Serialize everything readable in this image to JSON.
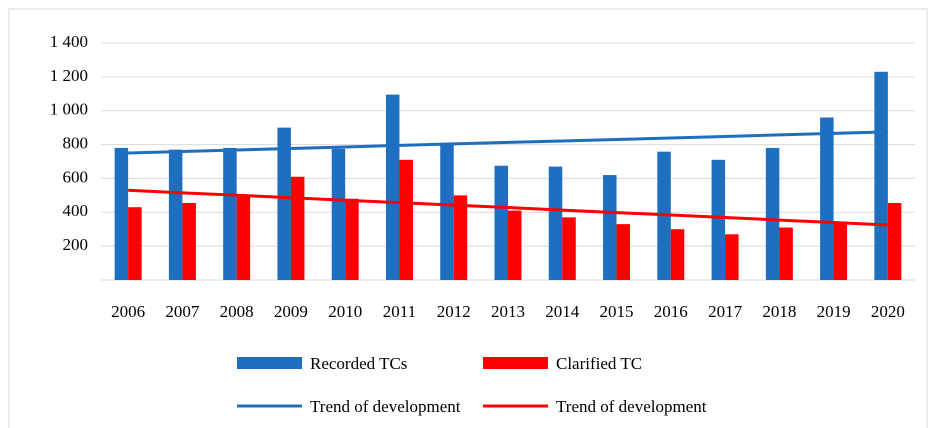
{
  "chart_data": {
    "type": "bar",
    "categories": [
      "2006",
      "2007",
      "2008",
      "2009",
      "2010",
      "2011",
      "2012",
      "2013",
      "2014",
      "2015",
      "2016",
      "2017",
      "2018",
      "2019",
      "2020"
    ],
    "series": [
      {
        "name": "Recorded TCs",
        "type": "bar",
        "color": "#1f6fc0",
        "values": [
          780,
          770,
          780,
          900,
          775,
          1095,
          810,
          675,
          670,
          620,
          758,
          710,
          780,
          960,
          1230
        ]
      },
      {
        "name": "Clarified TC",
        "type": "bar",
        "color": "#ff0000",
        "values": [
          430,
          455,
          500,
          610,
          480,
          710,
          500,
          410,
          370,
          330,
          300,
          270,
          310,
          340,
          455
        ]
      },
      {
        "name": "Trend of development",
        "type": "line",
        "color": "#1f6fc0",
        "values": [
          750,
          759,
          768,
          777,
          786,
          795,
          804,
          813,
          821,
          830,
          839,
          848,
          857,
          866,
          875
        ]
      },
      {
        "name": "Trend of development",
        "type": "line",
        "color": "#ff0000",
        "values": [
          530,
          515,
          501,
          486,
          471,
          457,
          442,
          428,
          413,
          398,
          384,
          369,
          354,
          340,
          325
        ]
      }
    ],
    "ylim": [
      0,
      1400
    ],
    "yticks": [
      200,
      400,
      600,
      800,
      {
        "value": 1000,
        "label": "1 000"
      },
      {
        "value": 1200,
        "label": "1 200"
      },
      {
        "value": 1400,
        "label": "1 400"
      }
    ],
    "grid": true,
    "legend": "bottom"
  }
}
